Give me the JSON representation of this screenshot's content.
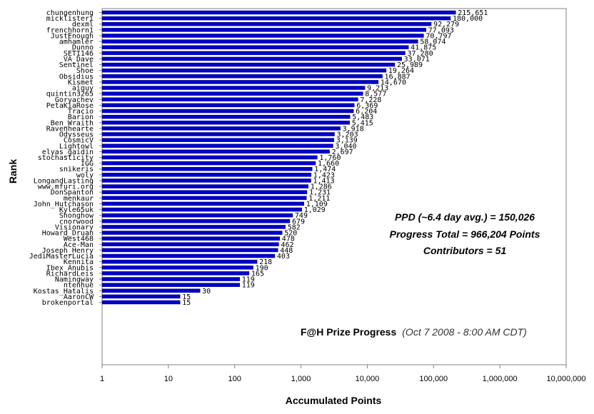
{
  "chart_data": {
    "type": "bar",
    "orientation": "horizontal",
    "xscale": "log",
    "xlim": [
      1,
      10000000
    ],
    "xlabel": "Accumulated Points",
    "ylabel": "Rank",
    "grid": false,
    "bar_color": "#0000cc",
    "x_ticks": [
      "1",
      "10",
      "100",
      "1,000",
      "10,000",
      "100,000",
      "1,000,000",
      "10,000,000"
    ],
    "categories": [
      "chungenhung",
      "micklisteri",
      "dexml",
      "frenchhorn1",
      "JustEnough",
      "amhamler",
      "Dunno",
      "SETI146",
      "VA_Dave",
      "Sentinel",
      "Shoe",
      "Obsidius",
      "Kismet",
      "aiguy",
      "quintin3265",
      "Goryachev",
      "PetaKiaRose",
      "Tracio",
      "Barion",
      "Ben_Wraith",
      "Ravenhearte",
      "Odysseus",
      "CosmicV",
      "Lightowl",
      "elyas_gaidin",
      "stochasticity",
      "IGG",
      "snikeris",
      "woly",
      "LongandLasting",
      "www.mfuri.org",
      "DonSpanton",
      "menkaur",
      "John_Hutchason",
      "Kyle65uk",
      "Shonghow",
      "cnorwood",
      "Visionary",
      "Howard_Druan",
      "West468",
      "Ace-Man",
      "Joseph_Henry",
      "JediMasterLucia",
      "Kennita",
      "Ibex_Anubis",
      "RichardLeis",
      "Namingway",
      "ntenhue",
      "Kostas_Hatalis",
      "AaronCW",
      "brokenportal"
    ],
    "values": [
      215651,
      180000,
      92279,
      77093,
      70797,
      58074,
      41875,
      37280,
      33071,
      25989,
      19264,
      16887,
      14670,
      9213,
      8577,
      7228,
      6369,
      6204,
      5483,
      5415,
      3918,
      3203,
      3139,
      3040,
      2697,
      1760,
      1660,
      1474,
      1423,
      1413,
      1286,
      1231,
      1211,
      1109,
      1029,
      749,
      679,
      582,
      520,
      478,
      462,
      448,
      403,
      218,
      190,
      165,
      119,
      119,
      30,
      15,
      15
    ],
    "value_labels": [
      "215,651",
      "180,000",
      "92,279",
      "77,093",
      "70,797",
      "58,074",
      "41,875",
      "37,280",
      "33,071",
      "25,989",
      "19,264",
      "16,887",
      "14,670",
      "9,213",
      "8,577",
      "7,228",
      "6,369",
      "6,204",
      "5,483",
      "5,415",
      "3,918",
      "3,203",
      "3,139",
      "3,040",
      "2,697",
      "1,760",
      "1,660",
      "1,474",
      "1,423",
      "1,413",
      "1,286",
      "1,231",
      "1,211",
      "1,109",
      "1,029",
      "749",
      "679",
      "582",
      "520",
      "478",
      "462",
      "448",
      "403",
      "218",
      "190",
      "165",
      "119",
      "119",
      "30",
      "15",
      "15"
    ],
    "annotations": {
      "ppd": "PPD (~6.4 day avg.) = 150,026",
      "progress": "Progress Total = 966,204 Points",
      "contributors": "Contributors = 51",
      "prize_title": "F@H Prize Progress",
      "prize_date": "(Oct 7 2008 - 8:00 AM CDT)"
    }
  }
}
